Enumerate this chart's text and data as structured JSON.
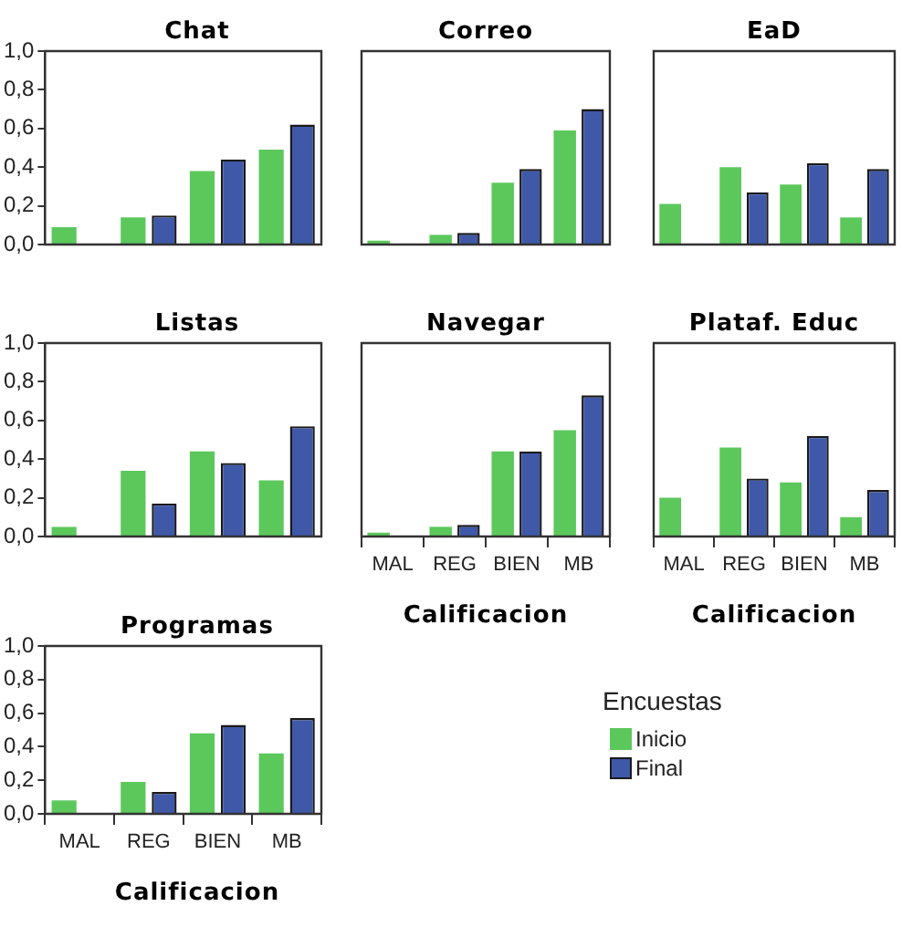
{
  "chart_data": [
    {
      "type": "bar",
      "title": "Chat",
      "categories": [
        "MAL",
        "REG",
        "BIEN",
        "MB"
      ],
      "series": [
        {
          "name": "Inicio",
          "color": "#5cc85c",
          "values": [
            0.09,
            0.14,
            0.38,
            0.49
          ]
        },
        {
          "name": "Final",
          "color": "#3f58a8",
          "values": [
            0,
            0.15,
            0.44,
            0.62
          ]
        }
      ],
      "ylim": [
        0,
        1
      ],
      "yticks": [
        {
          "value": 0,
          "label": "0,0"
        },
        {
          "value": 0.2,
          "label": "0,2"
        },
        {
          "value": 0.4,
          "label": "0,4"
        },
        {
          "value": 0.6,
          "label": "0,6"
        },
        {
          "value": 0.8,
          "label": "0,8"
        },
        {
          "value": 1,
          "label": "1,0"
        }
      ],
      "tick_labels": "y",
      "grid": false,
      "legend": "bottom right",
      "legend_title": "Encuestas"
    },
    {
      "type": "bar",
      "title": "Correo",
      "categories": [
        "MAL",
        "REG",
        "BIEN",
        "MB"
      ],
      "series": [
        {
          "name": "Inicio",
          "color": "#5cc85c",
          "values": [
            0.02,
            0.05,
            0.32,
            0.59
          ]
        },
        {
          "name": "Final",
          "color": "#3f58a8",
          "values": [
            0,
            0.06,
            0.39,
            0.7
          ]
        }
      ],
      "ylim": [
        0,
        1
      ],
      "yticks": [
        {
          "value": 0,
          "label": "0,0"
        },
        {
          "value": 0.2,
          "label": "0,2"
        },
        {
          "value": 0.4,
          "label": "0,4"
        },
        {
          "value": 0.6,
          "label": "0,6"
        },
        {
          "value": 0.8,
          "label": "0,8"
        },
        {
          "value": 1,
          "label": "1,0"
        }
      ],
      "tick_labels": false,
      "grid": false,
      "legend": false
    },
    {
      "type": "bar",
      "title": "EaD",
      "categories": [
        "MAL",
        "REG",
        "BIEN",
        "MB"
      ],
      "series": [
        {
          "name": "Inicio",
          "color": "#5cc85c",
          "values": [
            0.21,
            0.4,
            0.31,
            0.14
          ]
        },
        {
          "name": "Final",
          "color": "#3f58a8",
          "values": [
            0,
            0.27,
            0.42,
            0.39
          ]
        }
      ],
      "ylim": [
        0,
        1
      ],
      "yticks": [
        {
          "value": 0,
          "label": "0,0"
        },
        {
          "value": 0.2,
          "label": "0,2"
        },
        {
          "value": 0.4,
          "label": "0,4"
        },
        {
          "value": 0.6,
          "label": "0,6"
        },
        {
          "value": 0.8,
          "label": "0,8"
        },
        {
          "value": 1,
          "label": "1,0"
        }
      ],
      "tick_labels": false,
      "grid": false,
      "legend": false
    },
    {
      "type": "bar",
      "title": "Listas",
      "categories": [
        "MAL",
        "REG",
        "BIEN",
        "MB"
      ],
      "series": [
        {
          "name": "Inicio",
          "color": "#5cc85c",
          "values": [
            0.05,
            0.34,
            0.44,
            0.29
          ]
        },
        {
          "name": "Final",
          "color": "#3f58a8",
          "values": [
            0,
            0.17,
            0.38,
            0.57
          ]
        }
      ],
      "ylim": [
        0,
        1
      ],
      "yticks": [
        {
          "value": 0,
          "label": "0,0"
        },
        {
          "value": 0.2,
          "label": "0,2"
        },
        {
          "value": 0.4,
          "label": "0,4"
        },
        {
          "value": 0.6,
          "label": "0,6"
        },
        {
          "value": 0.8,
          "label": "0,8"
        },
        {
          "value": 1,
          "label": "1,0"
        }
      ],
      "tick_labels": "y",
      "grid": false,
      "legend": false
    },
    {
      "type": "bar",
      "title": "Navegar",
      "xlabel": "Calificacion",
      "categories": [
        "MAL",
        "REG",
        "BIEN",
        "MB"
      ],
      "series": [
        {
          "name": "Inicio",
          "color": "#5cc85c",
          "values": [
            0.02,
            0.05,
            0.44,
            0.55
          ]
        },
        {
          "name": "Final",
          "color": "#3f58a8",
          "values": [
            0,
            0.06,
            0.44,
            0.73
          ]
        }
      ],
      "ylim": [
        0,
        1
      ],
      "yticks": [
        {
          "value": 0,
          "label": "0,0"
        },
        {
          "value": 0.2,
          "label": "0,2"
        },
        {
          "value": 0.4,
          "label": "0,4"
        },
        {
          "value": 0.6,
          "label": "0,6"
        },
        {
          "value": 0.8,
          "label": "0,8"
        },
        {
          "value": 1,
          "label": "1,0"
        }
      ],
      "tick_labels": "x",
      "grid": false,
      "legend": false
    },
    {
      "type": "bar",
      "title": "Plataf. Educ",
      "xlabel": "Calificacion",
      "categories": [
        "MAL",
        "REG",
        "BIEN",
        "MB"
      ],
      "series": [
        {
          "name": "Inicio",
          "color": "#5cc85c",
          "values": [
            0.2,
            0.46,
            0.28,
            0.1
          ]
        },
        {
          "name": "Final",
          "color": "#3f58a8",
          "values": [
            0,
            0.3,
            0.52,
            0.24
          ]
        }
      ],
      "ylim": [
        0,
        1
      ],
      "yticks": [
        {
          "value": 0,
          "label": "0,0"
        },
        {
          "value": 0.2,
          "label": "0,2"
        },
        {
          "value": 0.4,
          "label": "0,4"
        },
        {
          "value": 0.6,
          "label": "0,6"
        },
        {
          "value": 0.8,
          "label": "0,8"
        },
        {
          "value": 1,
          "label": "1,0"
        }
      ],
      "tick_labels": "x",
      "grid": false,
      "legend": false
    },
    {
      "type": "bar",
      "title": "Programas",
      "xlabel": "Calificacion",
      "categories": [
        "MAL",
        "REG",
        "BIEN",
        "MB"
      ],
      "series": [
        {
          "name": "Inicio",
          "color": "#5cc85c",
          "values": [
            0.08,
            0.19,
            0.48,
            0.36
          ]
        },
        {
          "name": "Final",
          "color": "#3f58a8",
          "values": [
            0,
            0.13,
            0.53,
            0.57
          ]
        }
      ],
      "ylim": [
        0,
        1
      ],
      "yticks": [
        {
          "value": 0,
          "label": "0,0"
        },
        {
          "value": 0.2,
          "label": "0,2"
        },
        {
          "value": 0.4,
          "label": "0,4"
        },
        {
          "value": 0.6,
          "label": "0,6"
        },
        {
          "value": 0.8,
          "label": "0,8"
        },
        {
          "value": 1,
          "label": "1,0"
        }
      ],
      "grid": false,
      "legend": false
    }
  ]
}
